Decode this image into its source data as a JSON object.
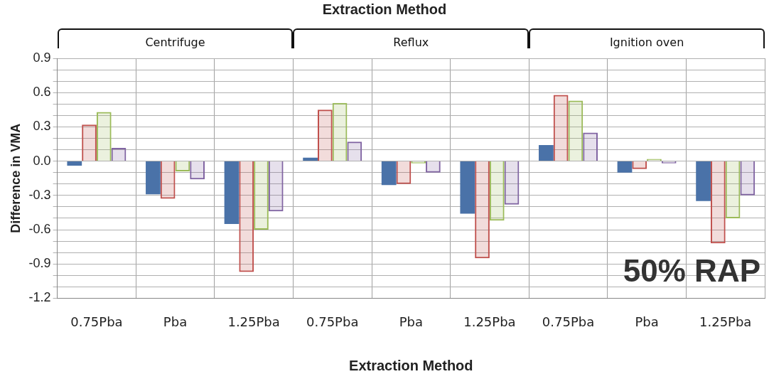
{
  "chart_data": {
    "type": "bar",
    "title": "Extraction Method",
    "xlabel": "Extraction Method",
    "ylabel": "Difference in VMA",
    "categories": [
      "0.75Pba",
      "Pba",
      "1.25Pba",
      "0.75Pba",
      "Pba",
      "1.25Pba",
      "0.75Pba",
      "Pba",
      "1.25Pba"
    ],
    "series": [
      {
        "color": "#4a72a8",
        "values": [
          -0.04,
          -0.29,
          -0.55,
          0.03,
          -0.21,
          -0.46,
          0.14,
          -0.1,
          -0.35
        ]
      },
      {
        "color": "#c0504d",
        "values": [
          0.32,
          -0.33,
          -0.97,
          0.45,
          -0.2,
          -0.85,
          0.58,
          -0.07,
          -0.72
        ]
      },
      {
        "color": "#9bbb59",
        "values": [
          0.43,
          -0.09,
          -0.6,
          0.51,
          -0.02,
          -0.52,
          0.53,
          0.02,
          -0.5
        ]
      },
      {
        "color": "#8064a2",
        "values": [
          0.115,
          -0.16,
          -0.44,
          0.17,
          -0.1,
          -0.38,
          0.25,
          -0.02,
          -0.3
        ]
      }
    ],
    "ylim": [
      -1.2,
      0.9
    ],
    "yticks": [
      -1.2,
      {
        "value": -1.1,
        "label": null
      },
      {
        "value": -1.0,
        "label": null
      },
      -0.9,
      {
        "value": -0.8,
        "label": null
      },
      {
        "value": -0.7,
        "label": null
      },
      -0.6,
      {
        "value": -0.5,
        "label": null
      },
      {
        "value": -0.4,
        "label": null
      },
      -0.3,
      {
        "value": -0.2,
        "label": null
      },
      {
        "value": -0.1,
        "label": null
      },
      {
        "value": 0,
        "label": "0.0"
      },
      {
        "value": 0.1,
        "label": null
      },
      {
        "value": 0.2,
        "label": null
      },
      0.3,
      {
        "value": 0.4,
        "label": null
      },
      {
        "value": 0.5,
        "label": null
      },
      0.6,
      {
        "value": 0.7,
        "label": null
      },
      {
        "value": 0.8,
        "label": null
      },
      0.9
    ],
    "grid": true,
    "legend": false,
    "annotations": [
      "Centrifuge",
      "Reflux",
      "Ignition oven",
      "50% RAP"
    ]
  }
}
